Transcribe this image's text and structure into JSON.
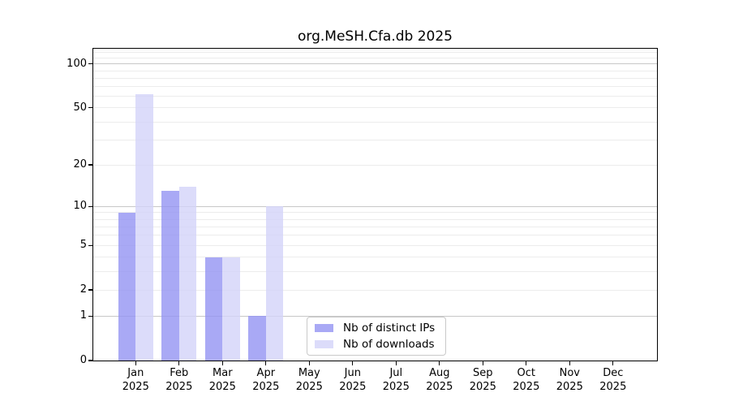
{
  "chart_data": {
    "type": "bar",
    "title": "org.MeSH.Cfa.db 2025",
    "year": "2025",
    "categories": [
      "Jan",
      "Feb",
      "Mar",
      "Apr",
      "May",
      "Jun",
      "Jul",
      "Aug",
      "Sep",
      "Oct",
      "Nov",
      "Dec"
    ],
    "series": [
      {
        "key": "distinct-ips",
        "name": "Nb of distinct IPs",
        "color": "rgba(148,148,242,0.8)",
        "values": [
          9,
          13,
          4,
          1,
          0,
          0,
          0,
          0,
          0,
          0,
          0,
          0
        ]
      },
      {
        "key": "downloads",
        "name": "Nb of downloads",
        "color": "rgba(211,211,249,0.8)",
        "values": [
          62,
          14,
          4,
          10,
          0,
          0,
          0,
          0,
          0,
          0,
          0,
          0
        ]
      }
    ],
    "xlabel": "",
    "ylabel": "",
    "yscale": "log1p",
    "ylim": [
      0,
      127
    ],
    "ytick_labels": [
      0,
      1,
      2,
      5,
      10,
      20,
      50,
      100
    ],
    "grid": {
      "on": true,
      "major_values": [
        1,
        10,
        100
      ],
      "minor_values": [
        2,
        3,
        4,
        5,
        6,
        7,
        8,
        9,
        20,
        30,
        40,
        50,
        60,
        70,
        80,
        90,
        110,
        120
      ],
      "major_color": "#c8c8c8",
      "minor_color": "#ececec"
    },
    "legend_position": "inside-bottom-center",
    "spine_color": "#000000",
    "background_color": "#ffffff"
  }
}
